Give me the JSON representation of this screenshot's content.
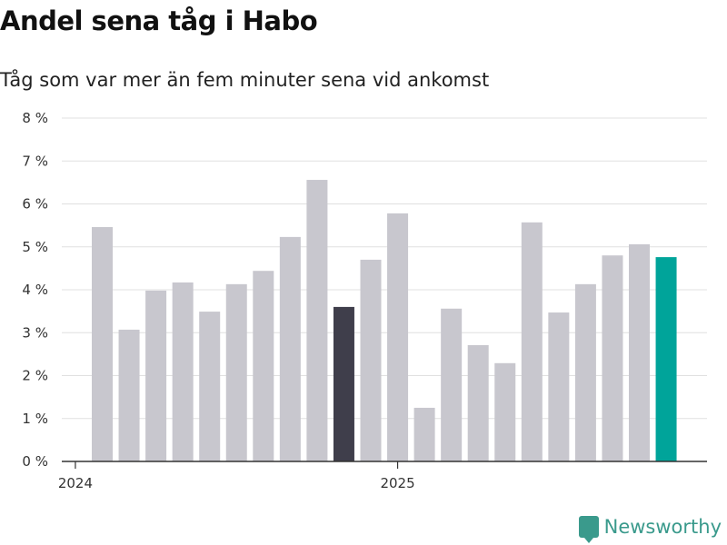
{
  "chart_data": {
    "type": "bar",
    "title": "Andel sena tåg i Habo",
    "subtitle": "Tåg som var mer än fem minuter sena vid ankomst",
    "xlabel": "",
    "ylabel": "",
    "ylim": [
      0,
      8
    ],
    "y_ticks": [
      "0 %",
      "1 %",
      "2 %",
      "3 %",
      "4 %",
      "5 %",
      "6 %",
      "7 %",
      "8 %"
    ],
    "x_ticks": [
      "2024",
      "2025"
    ],
    "grid": true,
    "categories": [
      "2024-02",
      "2024-03",
      "2024-04",
      "2024-05",
      "2024-06",
      "2024-07",
      "2024-08",
      "2024-09",
      "2024-10",
      "2024-11",
      "2024-12",
      "2025-01",
      "2025-02",
      "2025-03",
      "2025-04",
      "2025-05",
      "2025-06",
      "2025-07",
      "2025-08",
      "2025-09",
      "2025-10",
      "2025-11"
    ],
    "values": [
      5.46,
      3.07,
      3.98,
      4.17,
      3.49,
      4.13,
      4.44,
      5.23,
      6.56,
      3.6,
      4.7,
      5.78,
      1.25,
      3.56,
      2.71,
      2.29,
      5.57,
      3.47,
      4.13,
      4.8,
      5.06,
      4.76
    ],
    "highlight": {
      "2024-11": "#3f3e4b",
      "2025-11": "#00a49a"
    },
    "default_color": "#c8c7ce"
  },
  "branding": {
    "logo_text": "Newsworthy"
  }
}
